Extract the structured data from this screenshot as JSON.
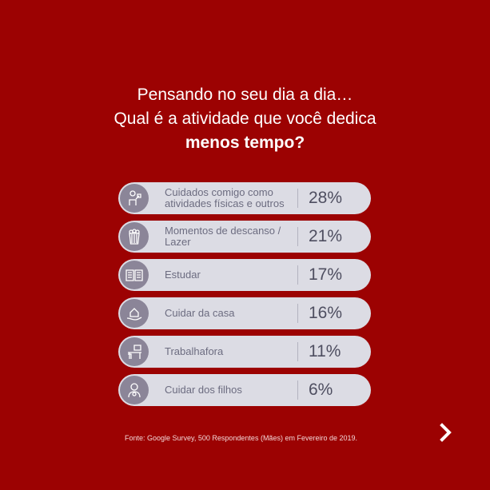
{
  "title": {
    "line1": "Pensando no seu dia a dia…",
    "line2": "Qual é a atividade que você dedica",
    "line3": "menos tempo?"
  },
  "items": [
    {
      "icon": "exercise-icon",
      "label": "Cuidados comigo como atividades físicas e outros",
      "value": "28%"
    },
    {
      "icon": "popcorn-icon",
      "label": "Momentos de descanso / Lazer",
      "value": "21%"
    },
    {
      "icon": "book-icon",
      "label": "Estudar",
      "value": "17%"
    },
    {
      "icon": "house-hand-icon",
      "label": "Cuidar da casa",
      "value": "16%"
    },
    {
      "icon": "desk-icon",
      "label": "Trabalhafora",
      "value": "11%"
    },
    {
      "icon": "mother-child-icon",
      "label": "Cuidar dos filhos",
      "value": "6%"
    }
  ],
  "source": "Fonte: Google Survey, 500 Respondentes (Mães) em Fevereiro de 2019.",
  "colors": {
    "background": "#9c0202",
    "pill": "#dcdce4",
    "icon_circle": "#8b8598"
  }
}
